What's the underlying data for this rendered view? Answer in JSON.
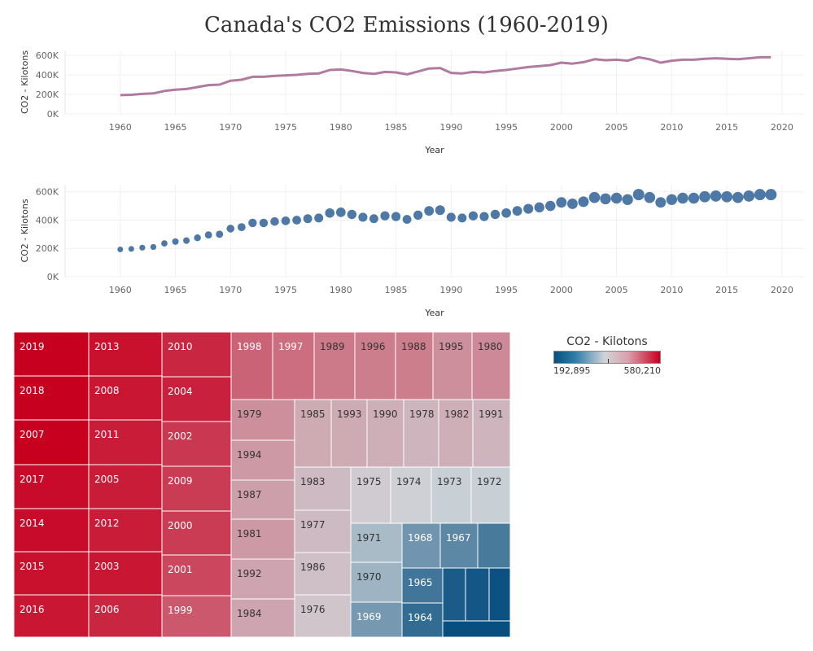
{
  "title": "Canada's CO2 Emissions (1960-2019)",
  "legend": {
    "title": "CO2 - Kilotons",
    "min_label": "192,895",
    "max_label": "580,210",
    "low_color": "#084f80",
    "mid_color": "#cfd4d8",
    "high_color": "#c80020"
  },
  "chart_data": [
    {
      "type": "line",
      "xlabel": "Year",
      "ylabel": "CO2 - Kilotons",
      "x_ticks": [
        "1960",
        "1965",
        "1970",
        "1975",
        "1980",
        "1985",
        "1990",
        "1995",
        "2000",
        "2005",
        "2010",
        "2015",
        "2020"
      ],
      "y_ticks": [
        "0K",
        "200K",
        "400K",
        "600K"
      ],
      "xlim": [
        1955,
        2022
      ],
      "ylim": [
        0,
        650000
      ],
      "color": "#b07aa1",
      "series": [
        {
          "x": [
            1960,
            1961,
            1962,
            1963,
            1964,
            1965,
            1966,
            1967,
            1968,
            1969,
            1970,
            1971,
            1972,
            1973,
            1974,
            1975,
            1976,
            1977,
            1978,
            1979,
            1980,
            1981,
            1982,
            1983,
            1984,
            1985,
            1986,
            1987,
            1988,
            1989,
            1990,
            1991,
            1992,
            1993,
            1994,
            1995,
            1996,
            1997,
            1998,
            1999,
            2000,
            2001,
            2002,
            2003,
            2004,
            2005,
            2006,
            2007,
            2008,
            2009,
            2010,
            2011,
            2012,
            2013,
            2014,
            2015,
            2016,
            2017,
            2018,
            2019
          ],
          "values": [
            192895,
            196000,
            205000,
            210000,
            235000,
            248000,
            255000,
            275000,
            295000,
            300000,
            340000,
            350000,
            380000,
            380000,
            390000,
            395000,
            400000,
            410000,
            415000,
            450000,
            455000,
            440000,
            420000,
            410000,
            430000,
            425000,
            405000,
            435000,
            465000,
            470000,
            420000,
            415000,
            430000,
            425000,
            440000,
            450000,
            465000,
            480000,
            490000,
            500000,
            525000,
            515000,
            530000,
            560000,
            550000,
            555000,
            545000,
            580210,
            560000,
            525000,
            545000,
            555000,
            555000,
            565000,
            570000,
            565000,
            560000,
            570000,
            580000,
            580000
          ]
        }
      ]
    },
    {
      "type": "scatter",
      "xlabel": "Year",
      "ylabel": "CO2 - Kilotons",
      "x_ticks": [
        "1960",
        "1965",
        "1970",
        "1975",
        "1980",
        "1985",
        "1990",
        "1995",
        "2000",
        "2005",
        "2010",
        "2015",
        "2020"
      ],
      "y_ticks": [
        "0K",
        "200K",
        "400K",
        "600K"
      ],
      "xlim": [
        1955,
        2022
      ],
      "ylim": [
        0,
        650000
      ],
      "color": "#4e79a7",
      "series": [
        {
          "x": [
            1960,
            1961,
            1962,
            1963,
            1964,
            1965,
            1966,
            1967,
            1968,
            1969,
            1970,
            1971,
            1972,
            1973,
            1974,
            1975,
            1976,
            1977,
            1978,
            1979,
            1980,
            1981,
            1982,
            1983,
            1984,
            1985,
            1986,
            1987,
            1988,
            1989,
            1990,
            1991,
            1992,
            1993,
            1994,
            1995,
            1996,
            1997,
            1998,
            1999,
            2000,
            2001,
            2002,
            2003,
            2004,
            2005,
            2006,
            2007,
            2008,
            2009,
            2010,
            2011,
            2012,
            2013,
            2014,
            2015,
            2016,
            2017,
            2018,
            2019
          ],
          "values": [
            192895,
            196000,
            205000,
            210000,
            235000,
            248000,
            255000,
            275000,
            295000,
            300000,
            340000,
            350000,
            380000,
            380000,
            390000,
            395000,
            400000,
            410000,
            415000,
            450000,
            455000,
            440000,
            420000,
            410000,
            430000,
            425000,
            405000,
            435000,
            465000,
            470000,
            420000,
            415000,
            430000,
            425000,
            440000,
            450000,
            465000,
            480000,
            490000,
            500000,
            525000,
            515000,
            530000,
            560000,
            550000,
            555000,
            545000,
            580210,
            560000,
            525000,
            545000,
            555000,
            555000,
            565000,
            570000,
            565000,
            560000,
            570000,
            580000,
            580000
          ]
        }
      ]
    },
    {
      "type": "heatmap",
      "subtype": "treemap",
      "color_range": [
        192895,
        580210
      ],
      "cells": [
        {
          "label": "2019",
          "value": 580000
        },
        {
          "label": "2018",
          "value": 580000
        },
        {
          "label": "2007",
          "value": 580210
        },
        {
          "label": "2017",
          "value": 570000
        },
        {
          "label": "2014",
          "value": 570000
        },
        {
          "label": "2015",
          "value": 565000
        },
        {
          "label": "2016",
          "value": 560000
        },
        {
          "label": "2013",
          "value": 565000
        },
        {
          "label": "2008",
          "value": 560000
        },
        {
          "label": "2011",
          "value": 555000
        },
        {
          "label": "2005",
          "value": 555000
        },
        {
          "label": "2012",
          "value": 555000
        },
        {
          "label": "2003",
          "value": 560000
        },
        {
          "label": "2006",
          "value": 545000
        },
        {
          "label": "2010",
          "value": 545000
        },
        {
          "label": "2004",
          "value": 550000
        },
        {
          "label": "2002",
          "value": 530000
        },
        {
          "label": "2009",
          "value": 525000
        },
        {
          "label": "2000",
          "value": 525000
        },
        {
          "label": "2001",
          "value": 515000
        },
        {
          "label": "1999",
          "value": 500000
        },
        {
          "label": "1998",
          "value": 490000
        },
        {
          "label": "1997",
          "value": 480000
        },
        {
          "label": "1989",
          "value": 470000
        },
        {
          "label": "1996",
          "value": 465000
        },
        {
          "label": "1988",
          "value": 465000
        },
        {
          "label": "1995",
          "value": 450000
        },
        {
          "label": "1980",
          "value": 455000
        },
        {
          "label": "1979",
          "value": 450000
        },
        {
          "label": "1994",
          "value": 440000
        },
        {
          "label": "1987",
          "value": 435000
        },
        {
          "label": "1981",
          "value": 440000
        },
        {
          "label": "1992",
          "value": 430000
        },
        {
          "label": "1984",
          "value": 430000
        },
        {
          "label": "1985",
          "value": 425000
        },
        {
          "label": "1993",
          "value": 425000
        },
        {
          "label": "1990",
          "value": 420000
        },
        {
          "label": "1978",
          "value": 415000
        },
        {
          "label": "1982",
          "value": 420000
        },
        {
          "label": "1991",
          "value": 415000
        },
        {
          "label": "1983",
          "value": 410000
        },
        {
          "label": "1977",
          "value": 410000
        },
        {
          "label": "1986",
          "value": 405000
        },
        {
          "label": "1976",
          "value": 400000
        },
        {
          "label": "1975",
          "value": 395000
        },
        {
          "label": "1974",
          "value": 390000
        },
        {
          "label": "1973",
          "value": 380000
        },
        {
          "label": "1972",
          "value": 380000
        },
        {
          "label": "1971",
          "value": 350000
        },
        {
          "label": "1970",
          "value": 340000
        },
        {
          "label": "1969",
          "value": 300000
        },
        {
          "label": "1968",
          "value": 295000
        },
        {
          "label": "1967",
          "value": 275000
        },
        {
          "label": "",
          "value": 255000
        },
        {
          "label": "1965",
          "value": 248000
        },
        {
          "label": "1964",
          "value": 235000
        },
        {
          "label": "",
          "value": 210000
        },
        {
          "label": "",
          "value": 205000
        },
        {
          "label": "",
          "value": 196000
        },
        {
          "label": "",
          "value": 192895
        }
      ]
    }
  ]
}
